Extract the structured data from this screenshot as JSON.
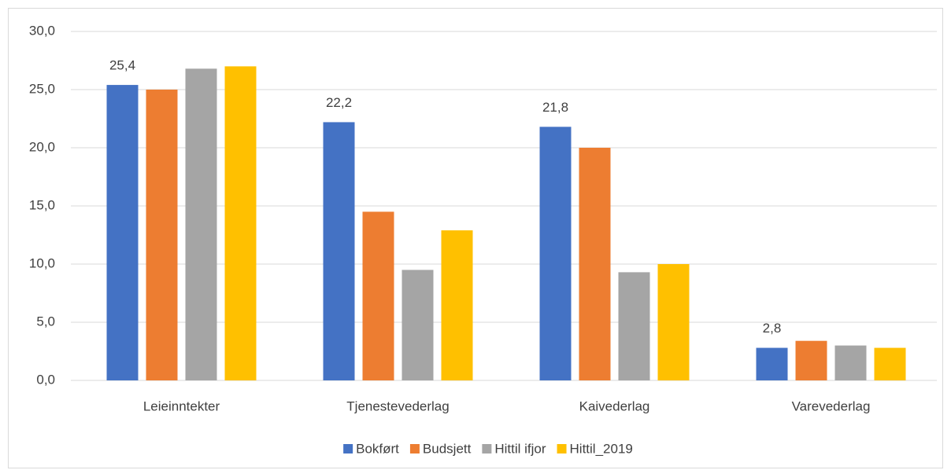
{
  "chart_data": {
    "type": "bar",
    "categories": [
      "Leieinntekter",
      "Tjenestevederlag",
      "Kaivederlag",
      "Varevederlag"
    ],
    "series": [
      {
        "name": "Bokført",
        "color": "#4472c4",
        "values": [
          25.4,
          22.2,
          21.8,
          2.8
        ],
        "value_labels": [
          "25,4",
          "22,2",
          "21,8",
          "2,8"
        ]
      },
      {
        "name": "Budsjett",
        "color": "#ed7d31",
        "values": [
          25.0,
          14.5,
          20.0,
          3.4
        ]
      },
      {
        "name": "Hittil ifjor",
        "color": "#a5a5a5",
        "values": [
          26.8,
          9.5,
          9.3,
          3.0
        ]
      },
      {
        "name": "Hittil_2019",
        "color": "#ffc000",
        "values": [
          27.0,
          12.9,
          10.0,
          2.8
        ]
      }
    ],
    "ylim": [
      0,
      30
    ],
    "yticks": [
      {
        "value": 0,
        "label": "0,0"
      },
      {
        "value": 5,
        "label": "5,0"
      },
      {
        "value": 10,
        "label": "10,0"
      },
      {
        "value": 15,
        "label": "15,0"
      },
      {
        "value": 20,
        "label": "20,0"
      },
      {
        "value": 25,
        "label": "25,0"
      },
      {
        "value": 30,
        "label": "30,0"
      }
    ],
    "grid": true,
    "legend": "bottom"
  }
}
